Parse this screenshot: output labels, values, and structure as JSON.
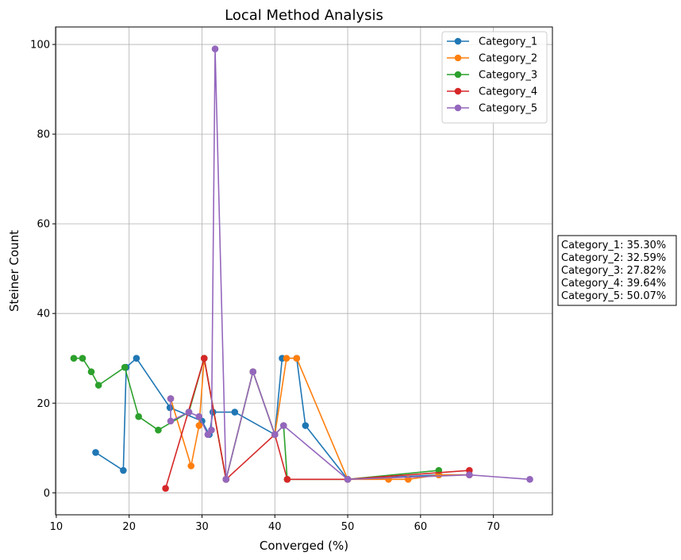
{
  "chart_data": {
    "type": "line",
    "title": "Local Method Analysis",
    "xlabel": "Converged (%)",
    "ylabel": "Steiner Count",
    "xlim": [
      9.9,
      78.1
    ],
    "ylim": [
      -4.9,
      103.9
    ],
    "xticks": [
      10,
      20,
      30,
      40,
      50,
      60,
      70
    ],
    "yticks": [
      0,
      20,
      40,
      60,
      80,
      100
    ],
    "grid": true,
    "legend_position": "top-right",
    "series": [
      {
        "name": "Category_1",
        "color": "#1f77b4",
        "points": [
          [
            15.4,
            9
          ],
          [
            19.2,
            5
          ],
          [
            19.6,
            28
          ],
          [
            21,
            30
          ],
          [
            25.6,
            19
          ],
          [
            30,
            16
          ],
          [
            31,
            13
          ],
          [
            31.5,
            18
          ],
          [
            34.5,
            18
          ],
          [
            40,
            13
          ],
          [
            41,
            30
          ],
          [
            43,
            30
          ],
          [
            44.2,
            15
          ],
          [
            50,
            3
          ],
          [
            62.5,
            4
          ],
          [
            66.7,
            4
          ]
        ]
      },
      {
        "name": "Category_2",
        "color": "#ff7f0e",
        "points": [
          [
            25.7,
            21
          ],
          [
            28.5,
            6
          ],
          [
            29.6,
            15
          ],
          [
            30.3,
            30
          ],
          [
            33.3,
            3
          ],
          [
            37,
            27
          ],
          [
            40,
            13
          ],
          [
            41.6,
            30
          ],
          [
            43,
            30
          ],
          [
            50,
            3
          ],
          [
            55.6,
            3
          ],
          [
            58.3,
            3
          ],
          [
            62.5,
            4
          ],
          [
            66.7,
            4
          ]
        ]
      },
      {
        "name": "Category_3",
        "color": "#2ca02c",
        "points": [
          [
            12.4,
            30
          ],
          [
            13.6,
            30
          ],
          [
            14.8,
            27
          ],
          [
            15.8,
            24
          ],
          [
            19.4,
            28
          ],
          [
            21.3,
            17
          ],
          [
            24,
            14
          ],
          [
            28.2,
            18
          ],
          [
            30.3,
            30
          ],
          [
            33.3,
            3
          ],
          [
            37,
            27
          ],
          [
            40,
            13
          ],
          [
            41.2,
            15
          ],
          [
            41.7,
            3
          ],
          [
            50,
            3
          ],
          [
            62.5,
            5
          ]
        ]
      },
      {
        "name": "Category_4",
        "color": "#d62728",
        "points": [
          [
            25,
            1
          ],
          [
            30.3,
            30
          ],
          [
            33.3,
            3
          ],
          [
            40,
            13
          ],
          [
            41.7,
            3
          ],
          [
            50,
            3
          ],
          [
            66.7,
            5
          ]
        ]
      },
      {
        "name": "Category_5",
        "color": "#9467bd",
        "points": [
          [
            25.7,
            21
          ],
          [
            25.7,
            16
          ],
          [
            28.2,
            18
          ],
          [
            29.6,
            17
          ],
          [
            30.8,
            13
          ],
          [
            31.3,
            14
          ],
          [
            31.8,
            99
          ],
          [
            33.3,
            3
          ],
          [
            37,
            27
          ],
          [
            40,
            13
          ],
          [
            41.2,
            15
          ],
          [
            50,
            3
          ],
          [
            66.7,
            4
          ],
          [
            75,
            3
          ]
        ]
      }
    ],
    "annotation_lines": [
      "Category_1: 35.30%",
      "Category_2: 32.59%",
      "Category_3: 27.82%",
      "Category_4: 39.64%",
      "Category_5: 50.07%"
    ]
  }
}
